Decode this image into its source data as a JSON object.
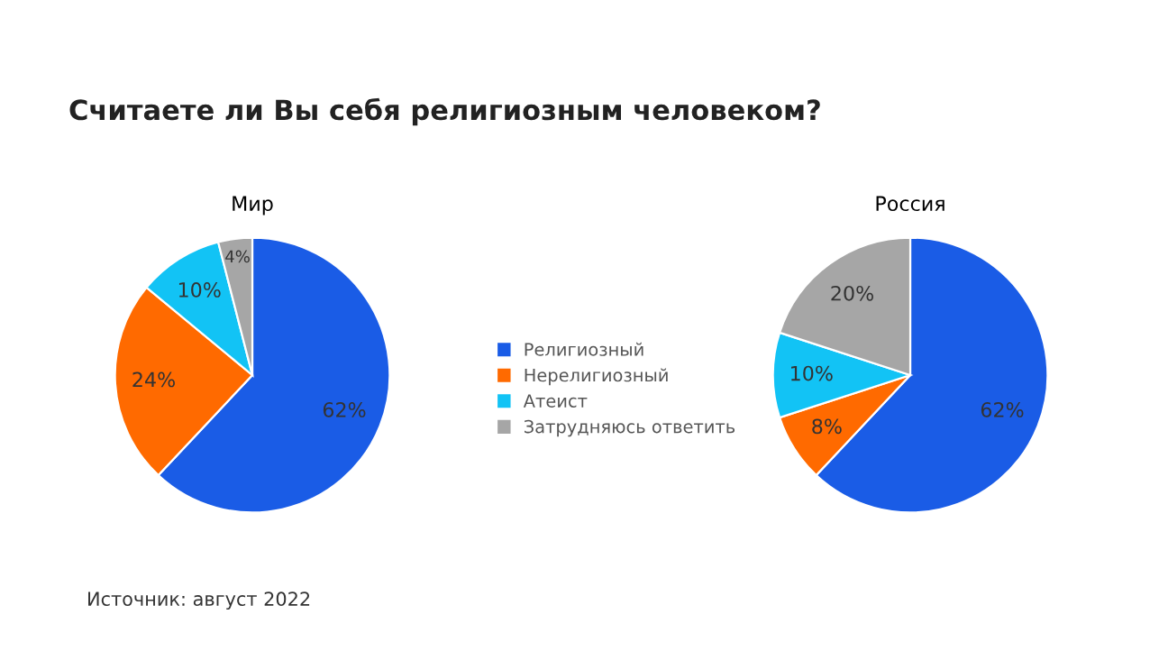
{
  "chart_data": [
    {
      "type": "pie",
      "title": "Мир",
      "categories": [
        "Религиозный",
        "Нерелигиозный",
        "Атеист",
        "Затрудняюсь ответить"
      ],
      "values": [
        62,
        24,
        10,
        4
      ],
      "value_labels": [
        "62%",
        "24%",
        "10%",
        "4%"
      ],
      "colors": [
        "#1a5ce6",
        "#ff6a00",
        "#12c3f5",
        "#a6a6a6"
      ],
      "legend": "right",
      "annotations": [
        "Считаете ли Вы себя религиозным человеком?",
        "Источник: август 2022"
      ]
    },
    {
      "type": "pie",
      "title": "Россия",
      "categories": [
        null,
        null,
        null,
        null
      ],
      "values": [
        62,
        8,
        10,
        20
      ],
      "value_labels": [
        "62%",
        "8%",
        "10%",
        "20%"
      ],
      "colors": [
        "#1a5ce6",
        "#ff6a00",
        "#12c3f5",
        "#a6a6a6"
      ]
    }
  ]
}
